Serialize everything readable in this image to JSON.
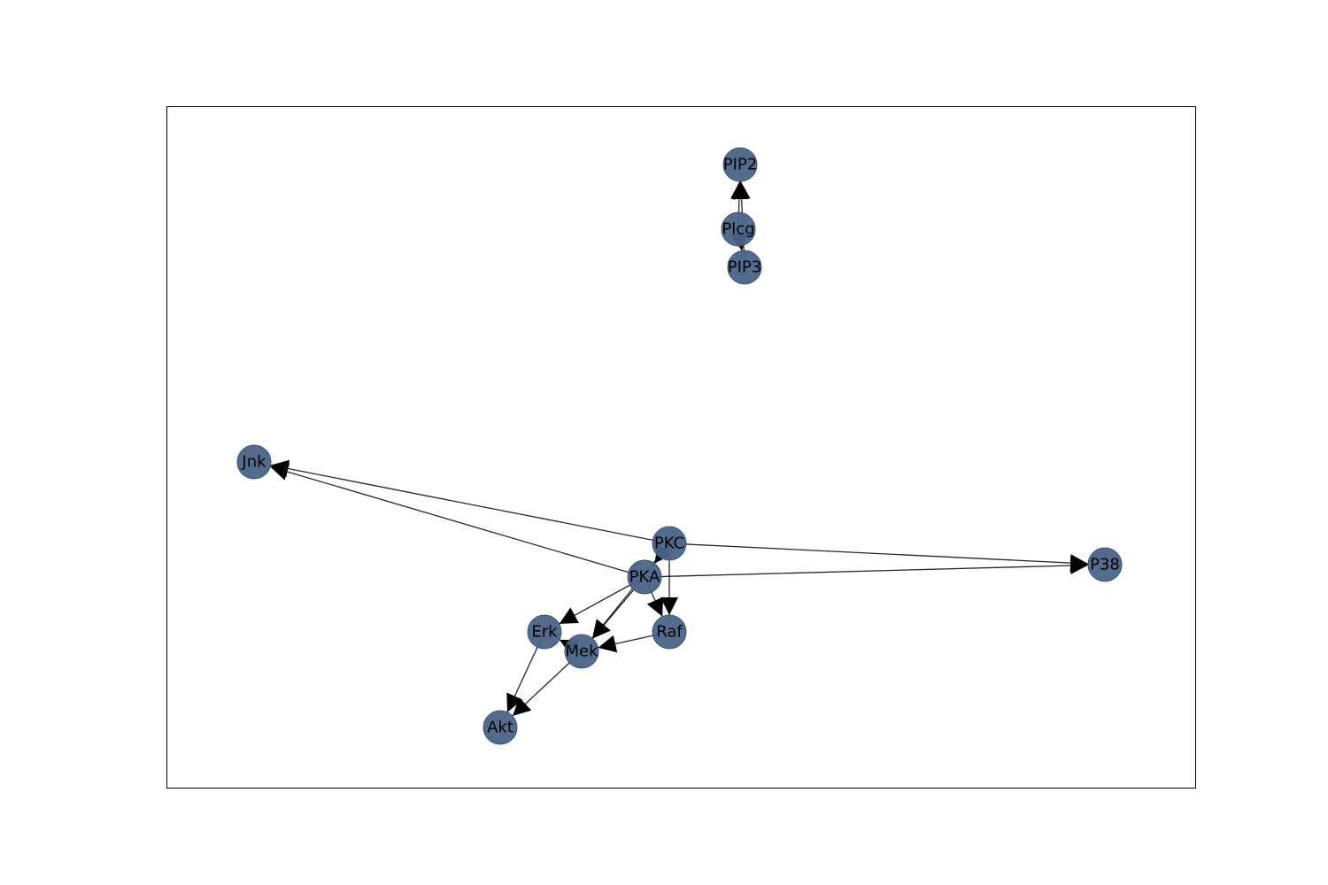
{
  "graph": {
    "node_color": "#4a6488",
    "node_stroke_color": "#3d5577",
    "edge_color": "#000000",
    "frame_color": "#000000",
    "nodes": [
      {
        "id": "PIP2",
        "label": "PIP2"
      },
      {
        "id": "Plcg",
        "label": "Plcg"
      },
      {
        "id": "PIP3",
        "label": "PIP3"
      },
      {
        "id": "Jnk",
        "label": "Jnk"
      },
      {
        "id": "PKC",
        "label": "PKC"
      },
      {
        "id": "P38",
        "label": "P38"
      },
      {
        "id": "PKA",
        "label": "PKA"
      },
      {
        "id": "Erk",
        "label": "Erk"
      },
      {
        "id": "Raf",
        "label": "Raf"
      },
      {
        "id": "Mek",
        "label": "Mek"
      },
      {
        "id": "Akt",
        "label": "Akt"
      }
    ],
    "edges": [
      {
        "source": "Plcg",
        "target": "PIP2"
      },
      {
        "source": "PIP3",
        "target": "PIP2"
      },
      {
        "source": "Plcg",
        "target": "PIP3"
      },
      {
        "source": "PKC",
        "target": "Jnk"
      },
      {
        "source": "PKA",
        "target": "Jnk"
      },
      {
        "source": "PKC",
        "target": "P38"
      },
      {
        "source": "PKA",
        "target": "P38"
      },
      {
        "source": "PKC",
        "target": "PKA"
      },
      {
        "source": "PKC",
        "target": "Raf"
      },
      {
        "source": "PKA",
        "target": "Raf"
      },
      {
        "source": "PKA",
        "target": "Erk"
      },
      {
        "source": "PKA",
        "target": "Mek"
      },
      {
        "source": "PKC",
        "target": "Mek"
      },
      {
        "source": "Raf",
        "target": "Mek"
      },
      {
        "source": "Mek",
        "target": "Erk"
      },
      {
        "source": "Erk",
        "target": "Akt"
      },
      {
        "source": "Mek",
        "target": "Akt"
      }
    ]
  }
}
